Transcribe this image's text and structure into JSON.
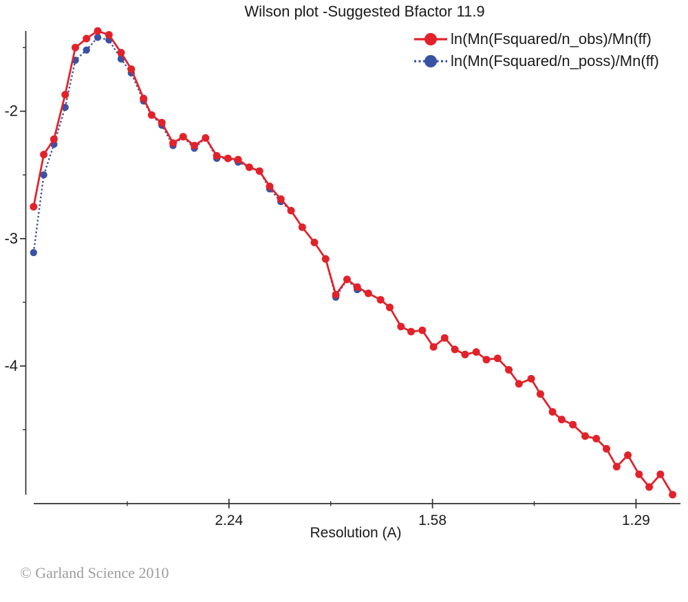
{
  "footer": {
    "copyright": "© Garland Science 2010"
  },
  "chart_data": {
    "type": "line",
    "title": "Wilson plot -Suggested Bfactor 11.9",
    "xlabel": "Resolution (A)",
    "grid": false,
    "legend_position": "top-right",
    "x_axis": {
      "scale": "1/d^2",
      "range": [
        0,
        0.643
      ],
      "major_ticks": [
        {
          "value": 0.2,
          "label": "2.24"
        },
        {
          "value": 0.4,
          "label": "1.58"
        },
        {
          "value": 0.6,
          "label": "1.29"
        }
      ],
      "minor_ticks": [
        0.1,
        0.3,
        0.5
      ]
    },
    "y_axis": {
      "range": [
        -5.01,
        -1.37
      ],
      "major_ticks": [
        {
          "value": -2,
          "label": "-2"
        },
        {
          "value": -3,
          "label": "-3"
        },
        {
          "value": -4,
          "label": "-4"
        }
      ],
      "minor_ticks": [
        -1.5,
        -2.5,
        -3.5,
        -4.5
      ]
    },
    "x": [
      0.008,
      0.018,
      0.028,
      0.039,
      0.049,
      0.06,
      0.071,
      0.082,
      0.094,
      0.104,
      0.116,
      0.124,
      0.134,
      0.145,
      0.155,
      0.166,
      0.177,
      0.188,
      0.199,
      0.209,
      0.22,
      0.23,
      0.24,
      0.251,
      0.261,
      0.272,
      0.284,
      0.295,
      0.305,
      0.316,
      0.326,
      0.337,
      0.349,
      0.358,
      0.369,
      0.379,
      0.39,
      0.401,
      0.412,
      0.422,
      0.432,
      0.443,
      0.453,
      0.464,
      0.475,
      0.485,
      0.497,
      0.506,
      0.518,
      0.527,
      0.538,
      0.55,
      0.561,
      0.571,
      0.581,
      0.592,
      0.603,
      0.613,
      0.624,
      0.636
    ],
    "series": [
      {
        "name": "ln(Mn(Fsquared/n_poss)/Mn(ff)",
        "color": "#3a52a3",
        "line": "dotted",
        "values": [
          -3.11,
          -2.5,
          -2.26,
          -1.97,
          -1.6,
          -1.52,
          -1.42,
          -1.44,
          -1.59,
          -1.7,
          -1.92,
          -2.03,
          -2.11,
          -2.27,
          -2.2,
          -2.29,
          -2.21,
          -2.37,
          -2.37,
          -2.4,
          -2.44,
          -2.47,
          -2.61,
          -2.71,
          -2.78,
          -2.91,
          -3.03,
          -3.16,
          -3.46,
          -3.32,
          -3.4,
          -3.43,
          -3.48,
          -3.54,
          -3.69,
          -3.73,
          -3.72,
          -3.85,
          -3.78,
          -3.87,
          -3.91,
          -3.89,
          -3.95,
          -3.94,
          -4.03,
          -4.14,
          -4.1,
          -4.22,
          -4.36,
          -4.42,
          -4.46,
          -4.55,
          -4.57,
          -4.65,
          -4.79,
          -4.7,
          -4.85,
          -4.95,
          -4.85,
          -5.01
        ]
      },
      {
        "name": "ln(Mn(Fsquared/n_obs)/Mn(ff)",
        "color": "#e2222a",
        "line": "solid",
        "values": [
          -2.75,
          -2.34,
          -2.22,
          -1.87,
          -1.5,
          -1.43,
          -1.37,
          -1.4,
          -1.54,
          -1.67,
          -1.9,
          -2.03,
          -2.09,
          -2.25,
          -2.2,
          -2.27,
          -2.21,
          -2.35,
          -2.37,
          -2.38,
          -2.44,
          -2.47,
          -2.59,
          -2.69,
          -2.78,
          -2.91,
          -3.03,
          -3.16,
          -3.44,
          -3.32,
          -3.38,
          -3.43,
          -3.48,
          -3.54,
          -3.69,
          -3.73,
          -3.72,
          -3.85,
          -3.78,
          -3.87,
          -3.91,
          -3.89,
          -3.95,
          -3.94,
          -4.03,
          -4.14,
          -4.1,
          -4.22,
          -4.36,
          -4.42,
          -4.46,
          -4.55,
          -4.57,
          -4.65,
          -4.79,
          -4.7,
          -4.85,
          -4.95,
          -4.85,
          -5.01
        ]
      }
    ]
  }
}
